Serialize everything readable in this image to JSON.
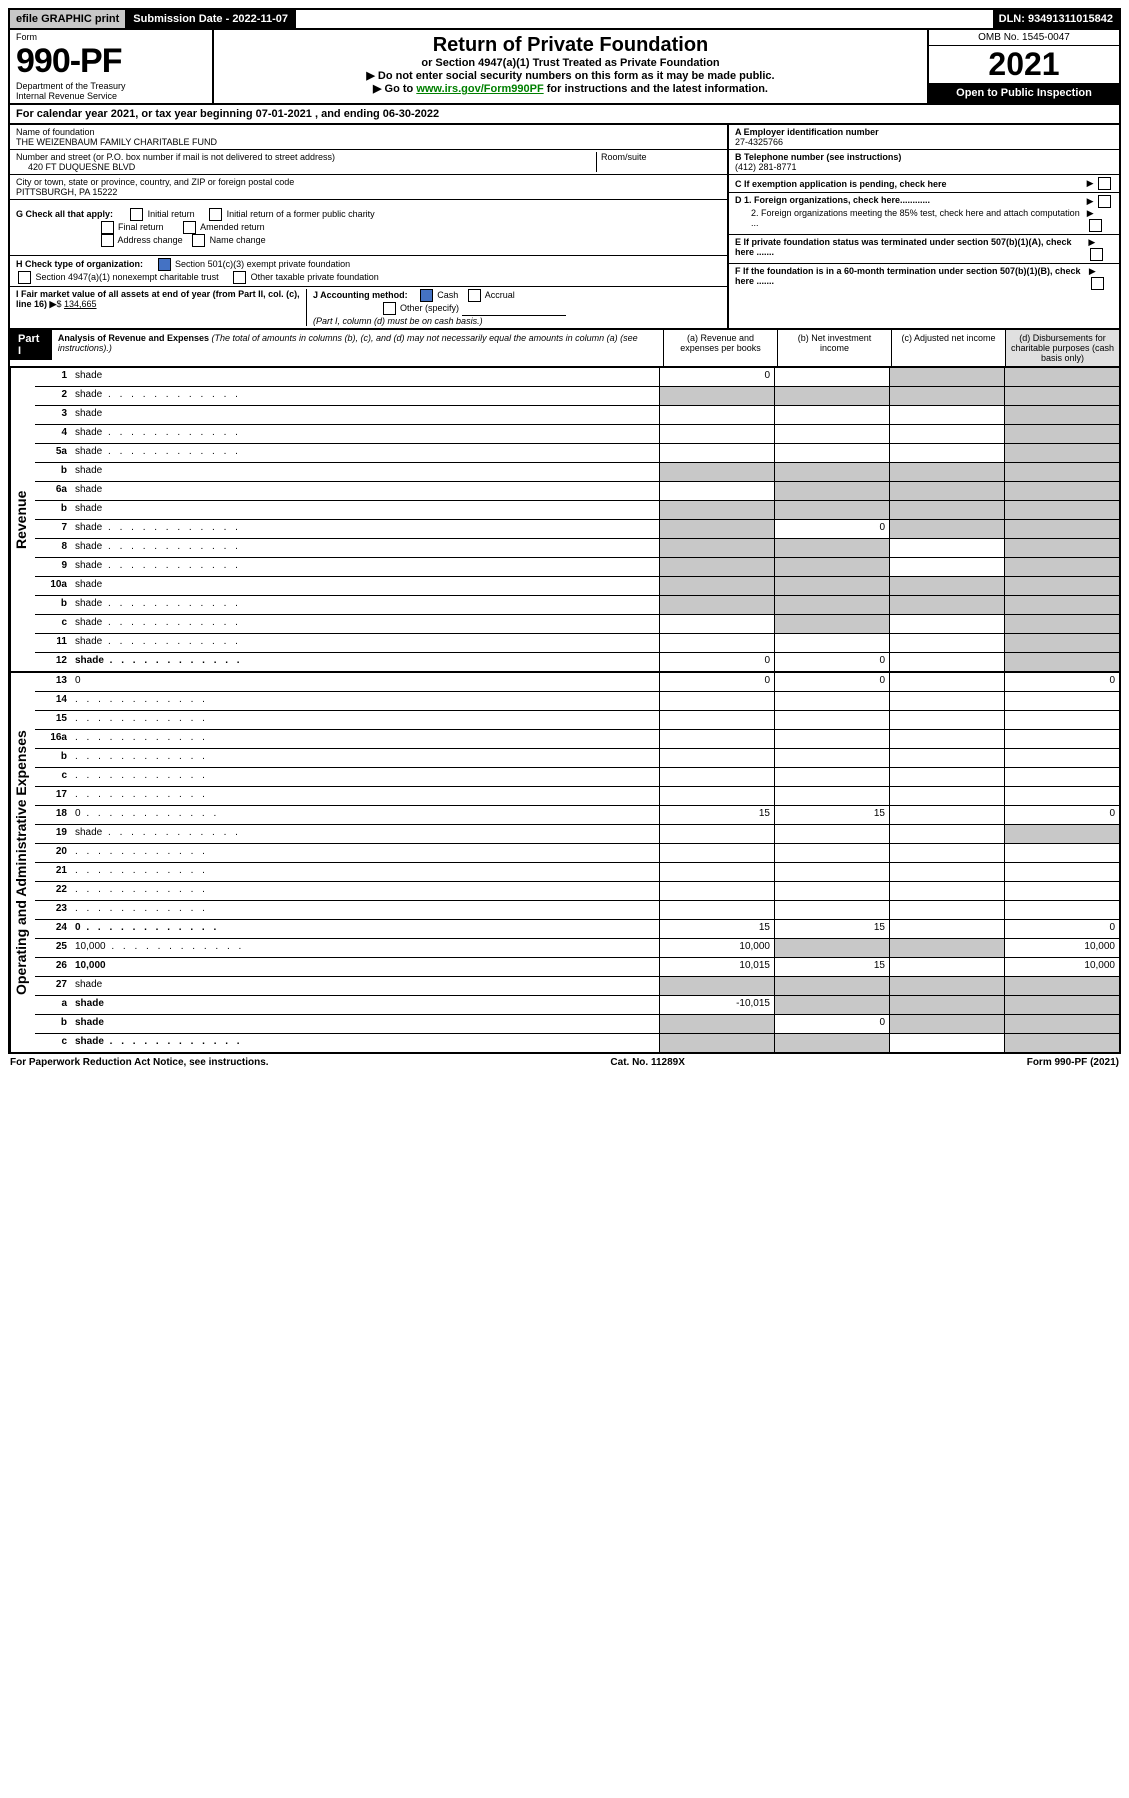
{
  "top": {
    "efile": "efile GRAPHIC print",
    "submission_label": "Submission Date - 2022-11-07",
    "dln": "DLN: 93491311015842"
  },
  "header": {
    "form_label": "Form",
    "form_num": "990-PF",
    "dept": "Department of the Treasury",
    "irs": "Internal Revenue Service",
    "title": "Return of Private Foundation",
    "subtitle": "or Section 4947(a)(1) Trust Treated as Private Foundation",
    "note1": "▶ Do not enter social security numbers on this form as it may be made public.",
    "note2_pre": "▶ Go to ",
    "note2_link": "www.irs.gov/Form990PF",
    "note2_post": " for instructions and the latest information.",
    "omb": "OMB No. 1545-0047",
    "year": "2021",
    "open": "Open to Public Inspection"
  },
  "calyear": "For calendar year 2021, or tax year beginning 07-01-2021            , and ending 06-30-2022",
  "info": {
    "name_lbl": "Name of foundation",
    "name": "THE WEIZENBAUM FAMILY CHARITABLE FUND",
    "addr_lbl": "Number and street (or P.O. box number if mail is not delivered to street address)",
    "addr": "420 FT DUQUESNE BLVD",
    "room_lbl": "Room/suite",
    "city_lbl": "City or town, state or province, country, and ZIP or foreign postal code",
    "city": "PITTSBURGH, PA  15222",
    "A_lbl": "A Employer identification number",
    "A": "27-4325766",
    "B_lbl": "B Telephone number (see instructions)",
    "B": "(412) 281-8771",
    "C": "C If exemption application is pending, check here",
    "D1": "D 1. Foreign organizations, check here............",
    "D2": "2. Foreign organizations meeting the 85% test, check here and attach computation ...",
    "E": "E  If private foundation status was terminated under section 507(b)(1)(A), check here .......",
    "F": "F  If the foundation is in a 60-month termination under section 507(b)(1)(B), check here .......",
    "G": "G Check all that apply:",
    "G_opts": [
      "Initial return",
      "Initial return of a former public charity",
      "Final return",
      "Amended return",
      "Address change",
      "Name change"
    ],
    "H": "H Check type of organization:",
    "H1": "Section 501(c)(3) exempt private foundation",
    "H2": "Section 4947(a)(1) nonexempt charitable trust",
    "H3": "Other taxable private foundation",
    "I": "I Fair market value of all assets at end of year (from Part II, col. (c), line 16)",
    "I_val": "134,665",
    "J": "J Accounting method:",
    "J1": "Cash",
    "J2": "Accrual",
    "J3": "Other (specify)",
    "J_note": "(Part I, column (d) must be on cash basis.)"
  },
  "part1": {
    "label": "Part I",
    "title": "Analysis of Revenue and Expenses",
    "title_note": "(The total of amounts in columns (b), (c), and (d) may not necessarily equal the amounts in column (a) (see instructions).)",
    "col_a": "(a)   Revenue and expenses per books",
    "col_b": "(b)   Net investment income",
    "col_c": "(c)   Adjusted net income",
    "col_d": "(d)   Disbursements for charitable purposes (cash basis only)",
    "rev_label": "Revenue",
    "exp_label": "Operating and Administrative Expenses",
    "rows": [
      {
        "n": "1",
        "d": "shade",
        "a": "0",
        "b": "",
        "c": "shade"
      },
      {
        "n": "2",
        "d": "shade",
        "a": "shade",
        "b": "shade",
        "c": "shade",
        "dots": true
      },
      {
        "n": "3",
        "d": "shade",
        "a": "",
        "b": "",
        "c": ""
      },
      {
        "n": "4",
        "d": "shade",
        "a": "",
        "b": "",
        "c": "",
        "dots": true
      },
      {
        "n": "5a",
        "d": "shade",
        "a": "",
        "b": "",
        "c": "",
        "dots": true
      },
      {
        "n": "b",
        "d": "shade",
        "a": "shade",
        "b": "shade",
        "c": "shade"
      },
      {
        "n": "6a",
        "d": "shade",
        "a": "",
        "b": "shade",
        "c": "shade"
      },
      {
        "n": "b",
        "d": "shade",
        "a": "shade",
        "b": "shade",
        "c": "shade"
      },
      {
        "n": "7",
        "d": "shade",
        "a": "shade",
        "b": "0",
        "c": "shade",
        "dots": true
      },
      {
        "n": "8",
        "d": "shade",
        "a": "shade",
        "b": "shade",
        "c": "",
        "dots": true
      },
      {
        "n": "9",
        "d": "shade",
        "a": "shade",
        "b": "shade",
        "c": "",
        "dots": true
      },
      {
        "n": "10a",
        "d": "shade",
        "a": "shade",
        "b": "shade",
        "c": "shade"
      },
      {
        "n": "b",
        "d": "shade",
        "a": "shade",
        "b": "shade",
        "c": "shade",
        "dots": true
      },
      {
        "n": "c",
        "d": "shade",
        "a": "",
        "b": "shade",
        "c": "",
        "dots": true
      },
      {
        "n": "11",
        "d": "shade",
        "a": "",
        "b": "",
        "c": "",
        "dots": true
      },
      {
        "n": "12",
        "d": "shade",
        "a": "0",
        "b": "0",
        "c": "",
        "bold": true,
        "dots": true
      }
    ],
    "exp_rows": [
      {
        "n": "13",
        "d": "0",
        "a": "0",
        "b": "0",
        "c": ""
      },
      {
        "n": "14",
        "d": "",
        "a": "",
        "b": "",
        "c": "",
        "dots": true
      },
      {
        "n": "15",
        "d": "",
        "a": "",
        "b": "",
        "c": "",
        "dots": true
      },
      {
        "n": "16a",
        "d": "",
        "a": "",
        "b": "",
        "c": "",
        "dots": true
      },
      {
        "n": "b",
        "d": "",
        "a": "",
        "b": "",
        "c": "",
        "dots": true
      },
      {
        "n": "c",
        "d": "",
        "a": "",
        "b": "",
        "c": "",
        "dots": true
      },
      {
        "n": "17",
        "d": "",
        "a": "",
        "b": "",
        "c": "",
        "dots": true
      },
      {
        "n": "18",
        "d": "0",
        "a": "15",
        "b": "15",
        "c": "",
        "dots": true
      },
      {
        "n": "19",
        "d": "shade",
        "a": "",
        "b": "",
        "c": "",
        "dots": true
      },
      {
        "n": "20",
        "d": "",
        "a": "",
        "b": "",
        "c": "",
        "dots": true
      },
      {
        "n": "21",
        "d": "",
        "a": "",
        "b": "",
        "c": "",
        "dots": true
      },
      {
        "n": "22",
        "d": "",
        "a": "",
        "b": "",
        "c": "",
        "dots": true
      },
      {
        "n": "23",
        "d": "",
        "a": "",
        "b": "",
        "c": "",
        "dots": true
      },
      {
        "n": "24",
        "d": "0",
        "a": "15",
        "b": "15",
        "c": "",
        "bold": true,
        "dots": true
      },
      {
        "n": "25",
        "d": "10,000",
        "a": "10,000",
        "b": "shade",
        "c": "shade",
        "dots": true
      },
      {
        "n": "26",
        "d": "10,000",
        "a": "10,015",
        "b": "15",
        "c": "",
        "bold": true
      },
      {
        "n": "27",
        "d": "shade",
        "a": "shade",
        "b": "shade",
        "c": "shade"
      },
      {
        "n": "a",
        "d": "shade",
        "a": "-10,015",
        "b": "shade",
        "c": "shade",
        "bold": true
      },
      {
        "n": "b",
        "d": "shade",
        "a": "shade",
        "b": "0",
        "c": "shade",
        "bold": true
      },
      {
        "n": "c",
        "d": "shade",
        "a": "shade",
        "b": "shade",
        "c": "",
        "bold": true,
        "dots": true
      }
    ]
  },
  "footer": {
    "left": "For Paperwork Reduction Act Notice, see instructions.",
    "center": "Cat. No. 11289X",
    "right": "Form 990-PF (2021)"
  }
}
